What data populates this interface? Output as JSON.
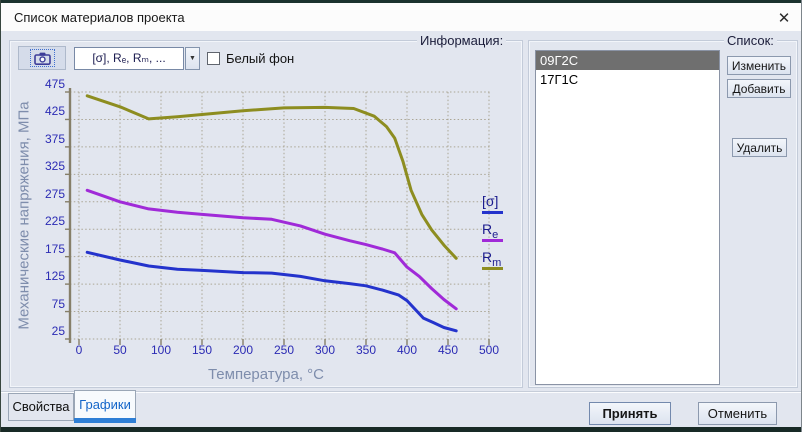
{
  "window": {
    "title": "Список материалов проекта",
    "close_glyph": "✕"
  },
  "toolbar": {
    "camera_icon": "camera-icon",
    "combo_value": "[σ], Rₑ, Rₘ, ...",
    "combo_arrow_glyph": "▼",
    "checkbox_label": "Белый фон",
    "checkbox_checked": false
  },
  "info_group": {
    "label": "Информация:"
  },
  "list_group": {
    "label": "Список:",
    "items": [
      {
        "label": "09Г2С",
        "selected": true
      },
      {
        "label": "17Г1С",
        "selected": false
      }
    ],
    "buttons": {
      "edit": "Изменить",
      "add": "Добавить",
      "delete": "Удалить"
    }
  },
  "tabs": {
    "properties": {
      "label": "Свойства",
      "active": false
    },
    "graphs": {
      "label": "Графики",
      "active": true
    }
  },
  "footer": {
    "accept": "Принять",
    "cancel": "Отменить"
  },
  "chart_data": {
    "type": "line",
    "title": "",
    "xlabel": "Температура, °C",
    "ylabel": "Механические напряжения, МПа",
    "xlim": [
      0,
      500
    ],
    "ylim": [
      25,
      475
    ],
    "x_ticks": [
      0,
      50,
      100,
      150,
      200,
      250,
      300,
      350,
      400,
      450,
      500
    ],
    "y_ticks": [
      475,
      425,
      375,
      325,
      275,
      225,
      175,
      125,
      75,
      25
    ],
    "grid": true,
    "grid_style": "dotted",
    "legend_position": "right",
    "legend": [
      {
        "base": "[σ]",
        "sub": "",
        "color": "#2433cc"
      },
      {
        "base": "R",
        "sub": "e",
        "color": "#a02ad8"
      },
      {
        "base": "R",
        "sub": "m",
        "color": "#8d8d20"
      }
    ],
    "series": [
      {
        "key": "sigma",
        "name": "[σ]",
        "color": "#2433cc",
        "points": [
          [
            10,
            183
          ],
          [
            50,
            169
          ],
          [
            85,
            158
          ],
          [
            120,
            152
          ],
          [
            150,
            150
          ],
          [
            200,
            146
          ],
          [
            235,
            145
          ],
          [
            270,
            139
          ],
          [
            300,
            131
          ],
          [
            330,
            126
          ],
          [
            350,
            122
          ],
          [
            370,
            114
          ],
          [
            390,
            105
          ],
          [
            400,
            95
          ],
          [
            410,
            79
          ],
          [
            420,
            63
          ],
          [
            432,
            55
          ],
          [
            445,
            46
          ],
          [
            460,
            40
          ]
        ]
      },
      {
        "key": "re",
        "name": "Rₑ",
        "color": "#a02ad8",
        "points": [
          [
            10,
            296
          ],
          [
            50,
            275
          ],
          [
            85,
            262
          ],
          [
            120,
            256
          ],
          [
            150,
            252
          ],
          [
            200,
            246
          ],
          [
            235,
            243
          ],
          [
            270,
            231
          ],
          [
            300,
            216
          ],
          [
            330,
            204
          ],
          [
            350,
            197
          ],
          [
            370,
            189
          ],
          [
            385,
            182
          ],
          [
            400,
            156
          ],
          [
            415,
            139
          ],
          [
            430,
            117
          ],
          [
            445,
            97
          ],
          [
            460,
            80
          ]
        ]
      },
      {
        "key": "rm",
        "name": "Rₘ",
        "color": "#8d8d20",
        "points": [
          [
            10,
            468
          ],
          [
            50,
            448
          ],
          [
            85,
            426
          ],
          [
            120,
            430
          ],
          [
            150,
            434
          ],
          [
            200,
            441
          ],
          [
            250,
            446
          ],
          [
            300,
            447
          ],
          [
            335,
            445
          ],
          [
            360,
            431
          ],
          [
            375,
            412
          ],
          [
            385,
            391
          ],
          [
            395,
            349
          ],
          [
            405,
            296
          ],
          [
            418,
            252
          ],
          [
            430,
            224
          ],
          [
            445,
            196
          ],
          [
            460,
            172
          ]
        ]
      }
    ]
  }
}
